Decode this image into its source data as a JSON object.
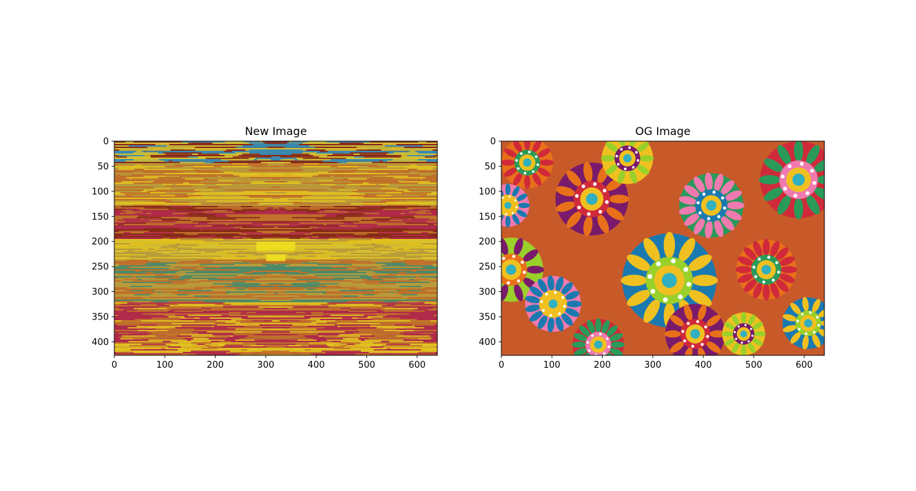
{
  "figure": {
    "background": "#ffffff"
  },
  "chart_data": [
    {
      "type": "image",
      "title": "New Image",
      "xlabel": "",
      "ylabel": "",
      "xlim": [
        0,
        640
      ],
      "ylim": [
        427,
        0
      ],
      "x_ticks": [
        0,
        100,
        200,
        300,
        400,
        500,
        600
      ],
      "y_ticks": [
        0,
        50,
        100,
        150,
        200,
        250,
        300,
        350,
        400
      ],
      "content": "horizontally-streaked scrambled pixel noise with a mirror-symmetric band structure around x≈320",
      "palette": [
        "#c0702a",
        "#8a2a1a",
        "#b89a3a",
        "#4a8a6a",
        "#d4c030",
        "#b02a4a",
        "#3a8ab0",
        "#e0c020"
      ]
    },
    {
      "type": "image",
      "title": "OG Image",
      "xlabel": "",
      "ylabel": "",
      "xlim": [
        0,
        640
      ],
      "ylim": [
        427,
        0
      ],
      "x_ticks": [
        0,
        100,
        200,
        300,
        400,
        500,
        600
      ],
      "y_ticks": [
        0,
        50,
        100,
        150,
        200,
        250,
        300,
        350,
        400
      ],
      "content": "psychedelic colorful mandala / flower artwork",
      "palette": [
        "#e8701a",
        "#f0c020",
        "#2a9a5a",
        "#7a1a6a",
        "#1a7ab0",
        "#d02a3a",
        "#9ad02a",
        "#f07ab0"
      ]
    }
  ]
}
